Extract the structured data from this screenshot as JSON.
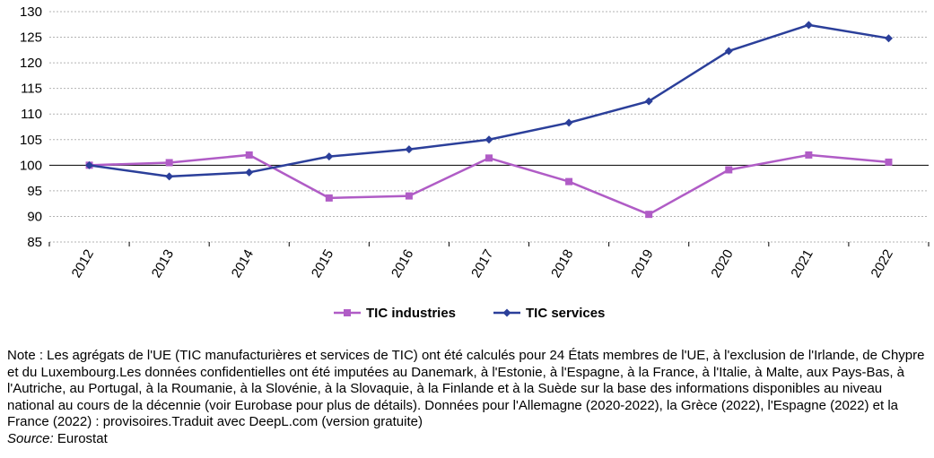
{
  "chart_data": {
    "type": "line",
    "categories": [
      "2012",
      "2013",
      "2014",
      "2015",
      "2016",
      "2017",
      "2018",
      "2019",
      "2020",
      "2021",
      "2022"
    ],
    "series": [
      {
        "name": "TIC industries",
        "color": "#b05cc6",
        "marker": "square",
        "values": [
          100,
          100.5,
          102,
          93.6,
          94,
          101.4,
          96.8,
          90.4,
          99.1,
          102,
          100.6
        ]
      },
      {
        "name": "TIC services",
        "color": "#2b3f9a",
        "marker": "diamond",
        "values": [
          100,
          97.8,
          98.6,
          101.7,
          103.1,
          105,
          108.3,
          112.5,
          122.3,
          127.4,
          124.8
        ]
      }
    ],
    "ylim": [
      85,
      130
    ],
    "yticks": [
      85,
      90,
      95,
      100,
      105,
      110,
      115,
      120,
      125,
      130
    ],
    "grid": true,
    "legend_position": "bottom",
    "xlabel": "",
    "ylabel": ""
  },
  "note": {
    "text": "Note : Les agrégats de l'UE (TIC manufacturières et services de TIC) ont été calculés pour 24 États membres de l'UE, à l'exclusion de l'Irlande, de Chypre et du Luxembourg.Les données confidentielles ont été imputées au Danemark, à l'Estonie, à l'Espagne, à la France, à l'Italie, à Malte, aux Pays-Bas, à l'Autriche, au Portugal, à la Roumanie, à la Slovénie, à la Slovaquie, à la Finlande et à la Suède sur la base des informations disponibles au niveau national au cours de la décennie (voir Eurobase pour plus de détails). Données pour l'Allemagne (2020-2022), la Grèce (2022), l'Espagne (2022) et la France (2022) : provisoires.Traduit avec DeepL.com (version gratuite)",
    "source_label": "Source:",
    "source_value": " Eurostat"
  }
}
